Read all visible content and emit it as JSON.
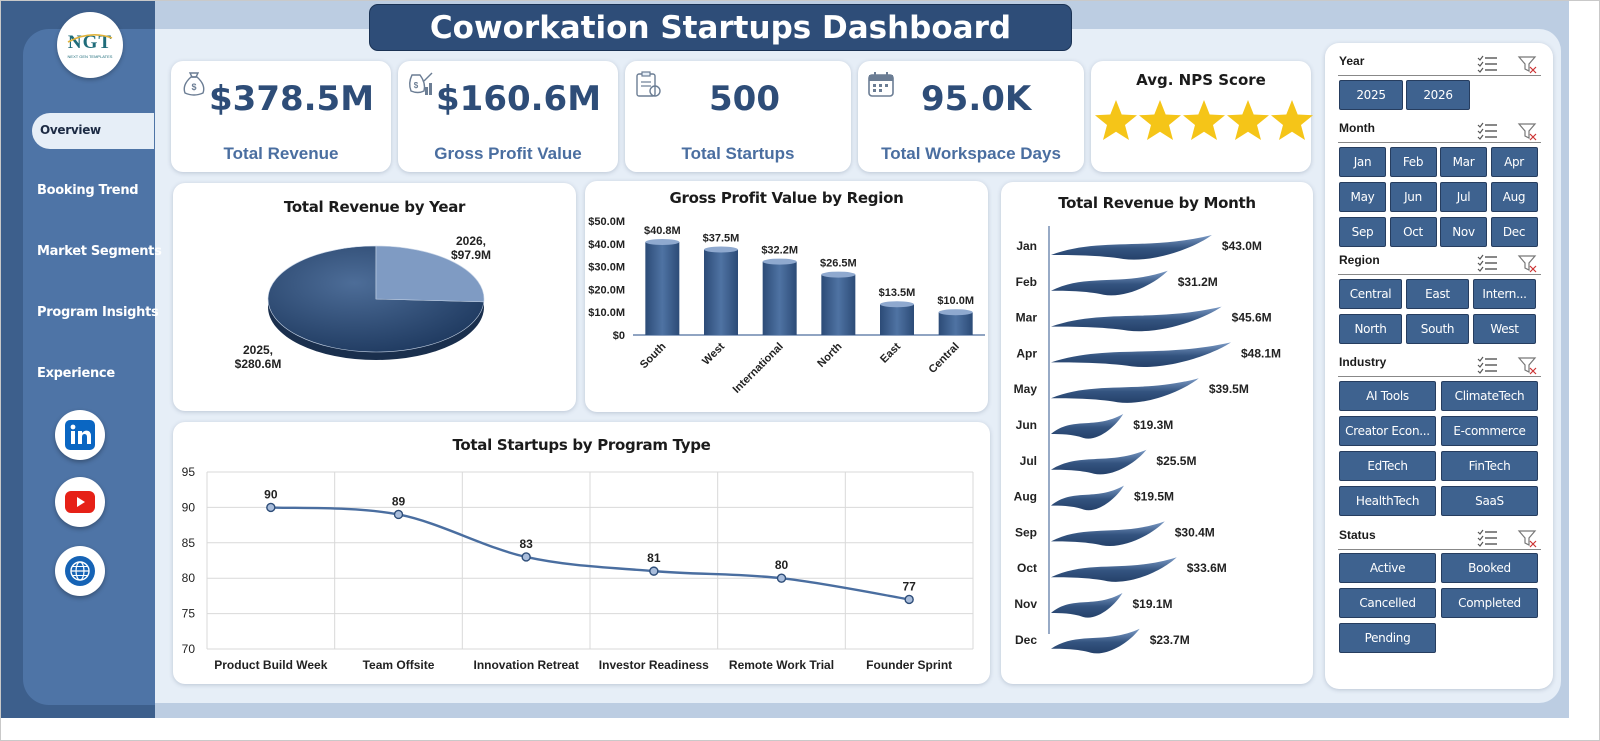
{
  "title": "Coworkation Startups Dashboard",
  "brand": {
    "logo_text": "NGT",
    "logo_sub": "NEXT GEN TEMPLATES"
  },
  "nav": {
    "items": [
      "Overview",
      "Booking Trend",
      "Market Segments",
      "Program Insights",
      "Experience"
    ],
    "active": "Overview"
  },
  "social": [
    "linkedin-icon",
    "youtube-icon",
    "globe-icon"
  ],
  "colors": {
    "primary": "#2e4d78",
    "accent": "#4a6ea0",
    "star": "#f5c518",
    "sidebar": "#4e74a6"
  },
  "kpis": [
    {
      "value": "$378.5M",
      "label": "Total Revenue",
      "icon": "money-bag-icon"
    },
    {
      "value": "$160.6M",
      "label": "Gross Profit Value",
      "icon": "profit-icon"
    },
    {
      "value": "500",
      "label": "Total Startups",
      "icon": "clipboard-icon"
    },
    {
      "value": "95.0K",
      "label": "Total Workspace Days",
      "icon": "calendar-icon"
    }
  ],
  "nps": {
    "label": "Avg. NPS Score",
    "stars": 5,
    "max_stars": 5
  },
  "chart_data": [
    {
      "type": "pie",
      "title": "Total Revenue by Year",
      "categories": [
        "2025",
        "2026"
      ],
      "values": [
        280.6,
        97.9
      ],
      "labels": [
        "2025,\n$280.6M",
        "2026,\n$97.9M"
      ]
    },
    {
      "type": "bar",
      "title": "Gross Profit Value by Region",
      "categories": [
        "South",
        "West",
        "International",
        "North",
        "East",
        "Central"
      ],
      "values": [
        40.8,
        37.5,
        32.2,
        26.5,
        13.5,
        10.0
      ],
      "data_labels": [
        "$40.8M",
        "$37.5M",
        "$32.2M",
        "$26.5M",
        "$13.5M",
        "$10.0M"
      ],
      "yticks": [
        "$0",
        "$10.0M",
        "$20.0M",
        "$30.0M",
        "$40.0M",
        "$50.0M"
      ],
      "ylim": [
        0,
        50
      ]
    },
    {
      "type": "line",
      "title": "Total Startups by Program Type",
      "categories": [
        "Product Build Week",
        "Team Offsite",
        "Innovation Retreat",
        "Investor Readiness",
        "Remote Work Trial",
        "Founder Sprint"
      ],
      "values": [
        90,
        89,
        83,
        81,
        80,
        77
      ],
      "yticks": [
        "70",
        "75",
        "80",
        "85",
        "90",
        "95"
      ],
      "ylim": [
        70,
        95
      ],
      "grid": true
    },
    {
      "type": "bar",
      "orientation": "horizontal",
      "title": "Total Revenue  by Month",
      "categories": [
        "Jan",
        "Feb",
        "Mar",
        "Apr",
        "May",
        "Jun",
        "Jul",
        "Aug",
        "Sep",
        "Oct",
        "Nov",
        "Dec"
      ],
      "values": [
        43.0,
        31.2,
        45.6,
        48.1,
        39.5,
        19.3,
        25.5,
        19.5,
        30.4,
        33.6,
        19.1,
        23.7
      ],
      "data_labels": [
        "$43.0M",
        "$31.2M",
        "$45.6M",
        "$48.1M",
        "$39.5M",
        "$19.3M",
        "$25.5M",
        "$19.5M",
        "$30.4M",
        "$33.6M",
        "$19.1M",
        "$23.7M"
      ]
    }
  ],
  "slicers": [
    {
      "title": "Year",
      "items": [
        "2025",
        "2026"
      ]
    },
    {
      "title": "Month",
      "items": [
        "Jan",
        "Feb",
        "Mar",
        "Apr",
        "May",
        "Jun",
        "Jul",
        "Aug",
        "Sep",
        "Oct",
        "Nov",
        "Dec"
      ]
    },
    {
      "title": "Region",
      "items": [
        "Central",
        "East",
        "Intern...",
        "North",
        "South",
        "West"
      ]
    },
    {
      "title": "Industry",
      "items": [
        "AI Tools",
        "ClimateTech",
        "Creator Econ...",
        "E-commerce",
        "EdTech",
        "FinTech",
        "HealthTech",
        "SaaS"
      ]
    },
    {
      "title": "Status",
      "items": [
        "Active",
        "Booked",
        "Cancelled",
        "Completed",
        "Pending"
      ]
    }
  ]
}
